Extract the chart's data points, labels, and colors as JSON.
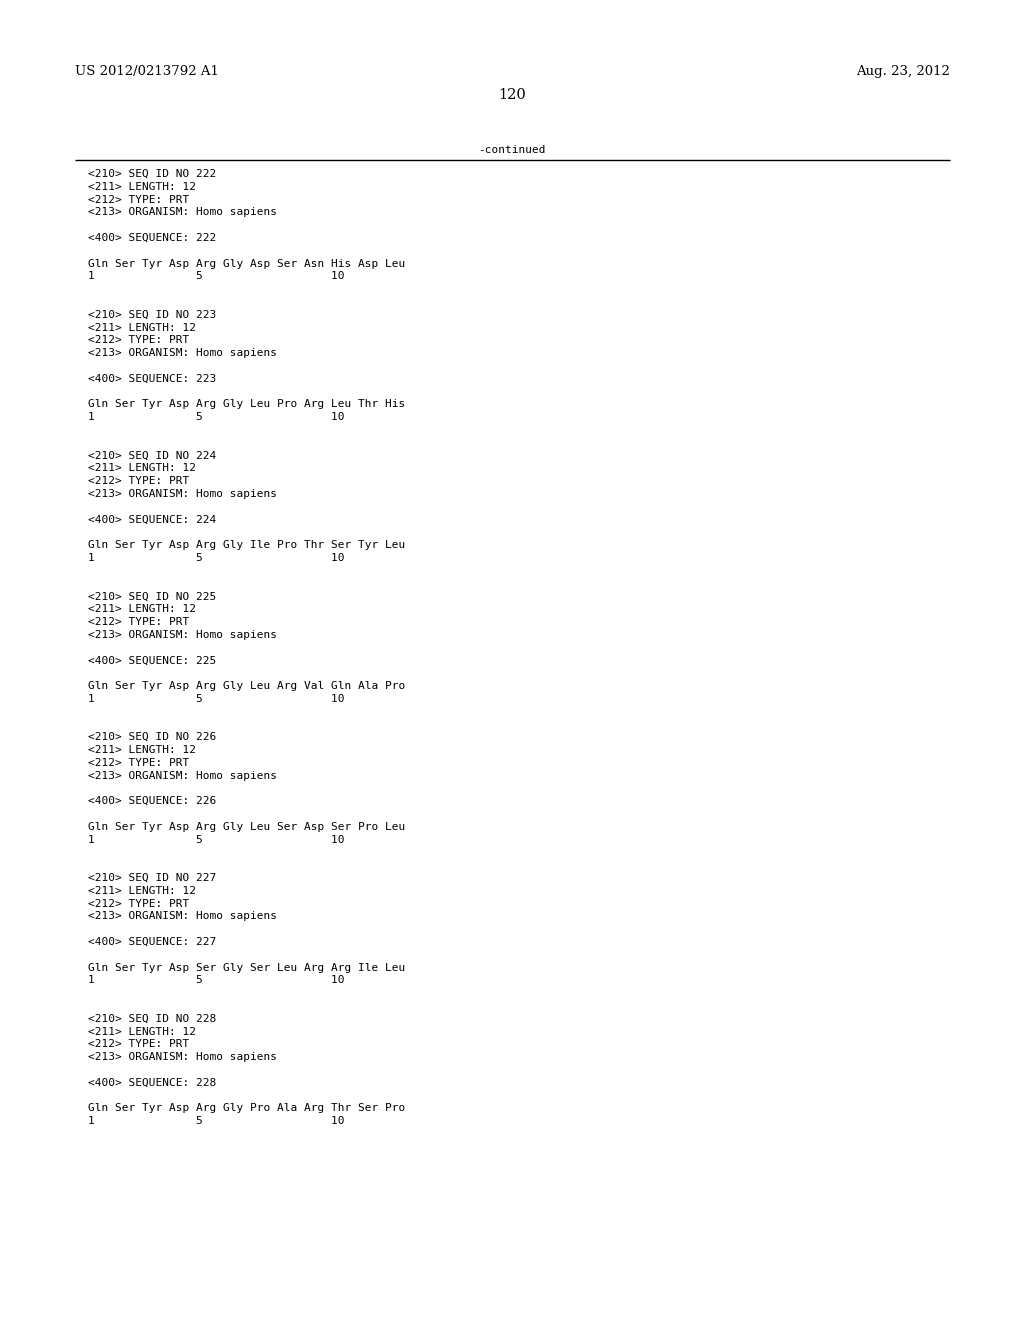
{
  "header_left": "US 2012/0213792 A1",
  "header_right": "Aug. 23, 2012",
  "page_number": "120",
  "continued_text": "-continued",
  "background_color": "#ffffff",
  "text_color": "#000000",
  "font_size_header": 9.5,
  "font_size_body": 8.0,
  "content": [
    "<210> SEQ ID NO 222",
    "<211> LENGTH: 12",
    "<212> TYPE: PRT",
    "<213> ORGANISM: Homo sapiens",
    "",
    "<400> SEQUENCE: 222",
    "",
    "Gln Ser Tyr Asp Arg Gly Asp Ser Asn His Asp Leu",
    "1               5                   10",
    "",
    "",
    "<210> SEQ ID NO 223",
    "<211> LENGTH: 12",
    "<212> TYPE: PRT",
    "<213> ORGANISM: Homo sapiens",
    "",
    "<400> SEQUENCE: 223",
    "",
    "Gln Ser Tyr Asp Arg Gly Leu Pro Arg Leu Thr His",
    "1               5                   10",
    "",
    "",
    "<210> SEQ ID NO 224",
    "<211> LENGTH: 12",
    "<212> TYPE: PRT",
    "<213> ORGANISM: Homo sapiens",
    "",
    "<400> SEQUENCE: 224",
    "",
    "Gln Ser Tyr Asp Arg Gly Ile Pro Thr Ser Tyr Leu",
    "1               5                   10",
    "",
    "",
    "<210> SEQ ID NO 225",
    "<211> LENGTH: 12",
    "<212> TYPE: PRT",
    "<213> ORGANISM: Homo sapiens",
    "",
    "<400> SEQUENCE: 225",
    "",
    "Gln Ser Tyr Asp Arg Gly Leu Arg Val Gln Ala Pro",
    "1               5                   10",
    "",
    "",
    "<210> SEQ ID NO 226",
    "<211> LENGTH: 12",
    "<212> TYPE: PRT",
    "<213> ORGANISM: Homo sapiens",
    "",
    "<400> SEQUENCE: 226",
    "",
    "Gln Ser Tyr Asp Arg Gly Leu Ser Asp Ser Pro Leu",
    "1               5                   10",
    "",
    "",
    "<210> SEQ ID NO 227",
    "<211> LENGTH: 12",
    "<212> TYPE: PRT",
    "<213> ORGANISM: Homo sapiens",
    "",
    "<400> SEQUENCE: 227",
    "",
    "Gln Ser Tyr Asp Ser Gly Ser Leu Arg Arg Ile Leu",
    "1               5                   10",
    "",
    "",
    "<210> SEQ ID NO 228",
    "<211> LENGTH: 12",
    "<212> TYPE: PRT",
    "<213> ORGANISM: Homo sapiens",
    "",
    "<400> SEQUENCE: 228",
    "",
    "Gln Ser Tyr Asp Arg Gly Pro Ala Arg Thr Ser Pro",
    "1               5                   10"
  ]
}
